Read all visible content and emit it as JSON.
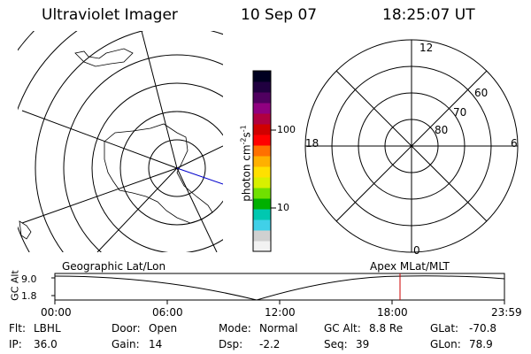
{
  "header": {
    "instrument": "Ultraviolet Imager",
    "date": "10 Sep 07",
    "time": "18:25:07 UT"
  },
  "colorbar": {
    "unit": "photon cm",
    "unit_exp1": "-2",
    "unit_s": "s",
    "unit_exp2": "-1",
    "tick_100": "100",
    "tick_10": "10",
    "colors": [
      "#f2f2f2",
      "#d0d0d0",
      "#40d0e8",
      "#00c8b0",
      "#00b000",
      "#70e000",
      "#d8f000",
      "#ffe000",
      "#ffb000",
      "#ff7000",
      "#ff0000",
      "#d00000",
      "#b00040",
      "#900080",
      "#500060",
      "#200040",
      "#000020"
    ]
  },
  "right_plot": {
    "mlt_12": "12",
    "mlt_18": "18",
    "mlt_6": "6",
    "mlt_0": "0",
    "lat_60": "60",
    "lat_70": "70",
    "lat_80": "80"
  },
  "altitude_plot": {
    "left_title": "Geographic Lat/Lon",
    "right_title": "Apex  MLat/MLT",
    "ylabel": "GC Alt",
    "ytick_top": "9.0",
    "ytick_bottom": "1.8",
    "xticks": [
      "00:00",
      "06:00",
      "12:00",
      "18:00",
      "23:59"
    ]
  },
  "info": {
    "flt_label": "Flt:",
    "flt_value": "LBHL",
    "ip_label": "IP:",
    "ip_value": "36.0",
    "door_label": "Door:",
    "door_value": "Open",
    "gain_label": "Gain:",
    "gain_value": "14",
    "mode_label": "Mode:",
    "mode_value": "Normal",
    "dsp_label": "Dsp:",
    "dsp_value": "-2.2",
    "gcalt_label": "GC Alt:",
    "gcalt_value": "8.8 Re",
    "seq_label": "Seq:",
    "seq_value": "39",
    "glat_label": "GLat:",
    "glat_value": "-70.8",
    "glon_label": "GLon:",
    "glon_value": "78.9"
  }
}
